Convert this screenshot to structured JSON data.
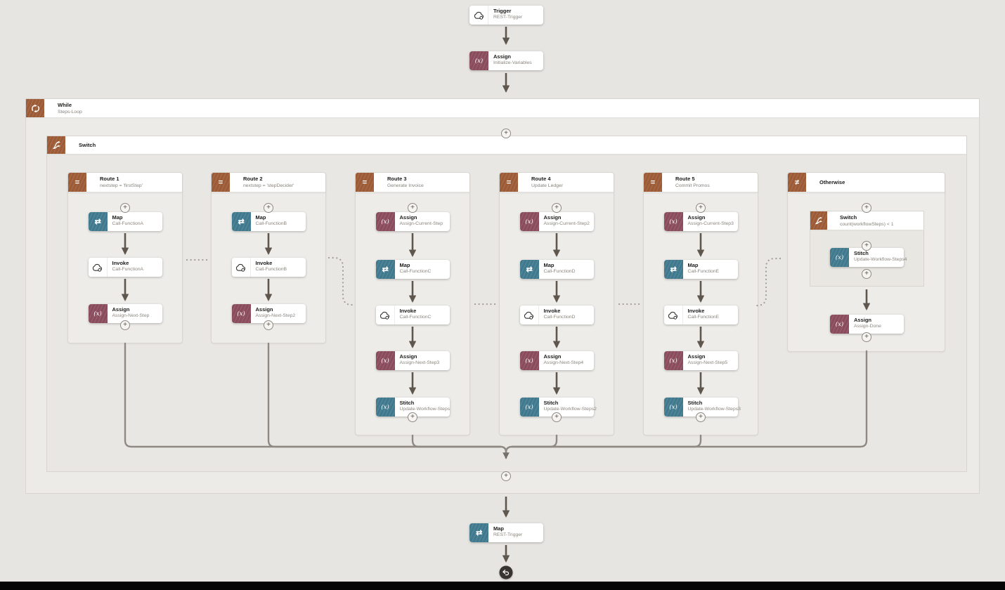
{
  "flow": {
    "trigger": {
      "title": "Trigger",
      "subtitle": "REST-Trigger"
    },
    "initialize": {
      "title": "Assign",
      "subtitle": "Initialize-Variables"
    },
    "while_loop": {
      "title": "While",
      "subtitle": "Steps-Loop"
    },
    "switch": {
      "title": "Switch",
      "routes": [
        {
          "title": "Route 1",
          "subtitle": "nextstep = 'firstStep'",
          "nodes": [
            {
              "kind": "map",
              "title": "Map",
              "subtitle": "Call-FunctionA"
            },
            {
              "kind": "invoke",
              "title": "Invoke",
              "subtitle": "Call-FunctionA"
            },
            {
              "kind": "assign",
              "title": "Assign",
              "subtitle": "Assign-Next-Step"
            }
          ]
        },
        {
          "title": "Route 2",
          "subtitle": "nextstep = 'stepDecider'",
          "nodes": [
            {
              "kind": "map",
              "title": "Map",
              "subtitle": "Call-FunctionB"
            },
            {
              "kind": "invoke",
              "title": "Invoke",
              "subtitle": "Call-FunctionB"
            },
            {
              "kind": "assign",
              "title": "Assign",
              "subtitle": "Assign-Next-Step2"
            }
          ]
        },
        {
          "title": "Route 3",
          "subtitle": "Generate Invoice",
          "nodes": [
            {
              "kind": "assign",
              "title": "Assign",
              "subtitle": "Assign-Current-Step"
            },
            {
              "kind": "map",
              "title": "Map",
              "subtitle": "Call-FunctionC"
            },
            {
              "kind": "invoke",
              "title": "Invoke",
              "subtitle": "Call-FunctionC"
            },
            {
              "kind": "assign",
              "title": "Assign",
              "subtitle": "Assign-Next-Step3"
            },
            {
              "kind": "stitch",
              "title": "Stitch",
              "subtitle": "Update-Workflow-Steps"
            }
          ]
        },
        {
          "title": "Route 4",
          "subtitle": "Update Ledger",
          "nodes": [
            {
              "kind": "assign",
              "title": "Assign",
              "subtitle": "Assign-Current-Step2"
            },
            {
              "kind": "map",
              "title": "Map",
              "subtitle": "Call-FunctionD"
            },
            {
              "kind": "invoke",
              "title": "Invoke",
              "subtitle": "Call-FunctionD"
            },
            {
              "kind": "assign",
              "title": "Assign",
              "subtitle": "Assign-Next-Step4"
            },
            {
              "kind": "stitch",
              "title": "Stitch",
              "subtitle": "Update-Workflow-Steps2"
            }
          ]
        },
        {
          "title": "Route 5",
          "subtitle": "Commit Promos",
          "nodes": [
            {
              "kind": "assign",
              "title": "Assign",
              "subtitle": "Assign-Current-Step3"
            },
            {
              "kind": "map",
              "title": "Map",
              "subtitle": "Call-FunctionE"
            },
            {
              "kind": "invoke",
              "title": "Invoke",
              "subtitle": "Call-FunctionE"
            },
            {
              "kind": "assign",
              "title": "Assign",
              "subtitle": "Assign-Next-Step5"
            },
            {
              "kind": "stitch",
              "title": "Stitch",
              "subtitle": "Update-Workflow-Steps3"
            }
          ]
        }
      ],
      "otherwise": {
        "title": "Otherwise",
        "inner_switch": {
          "title": "Switch",
          "subtitle": "count(workflowSteps) < 1",
          "node": {
            "kind": "stitch",
            "title": "Stitch",
            "subtitle": "Update-Workflow-Steps4"
          }
        },
        "done_node": {
          "kind": "assign",
          "title": "Assign",
          "subtitle": "Assign-Done"
        }
      }
    },
    "return_map": {
      "title": "Map",
      "subtitle": "REST-Trigger"
    }
  },
  "icons": {
    "route_glyph": "=",
    "otherwise_glyph": "≠",
    "map_glyph": "⇄",
    "assign_glyph": "(x)",
    "stitch_glyph": "(x)",
    "chevron_glyph": "∨",
    "plus_glyph": "+",
    "cloud_icon": "cloud-with-gear",
    "branch_icon": "split-arrows",
    "loop_icon": "circular-arrows",
    "return_icon": "return-arrow"
  },
  "colors": {
    "accent_brown": "#9c5a36",
    "accent_maroon": "#8a4c5c",
    "accent_teal": "#40798e",
    "canvas": "#e7e5e1",
    "arrow": "#5f574e",
    "merge_line": "#8f8983"
  }
}
